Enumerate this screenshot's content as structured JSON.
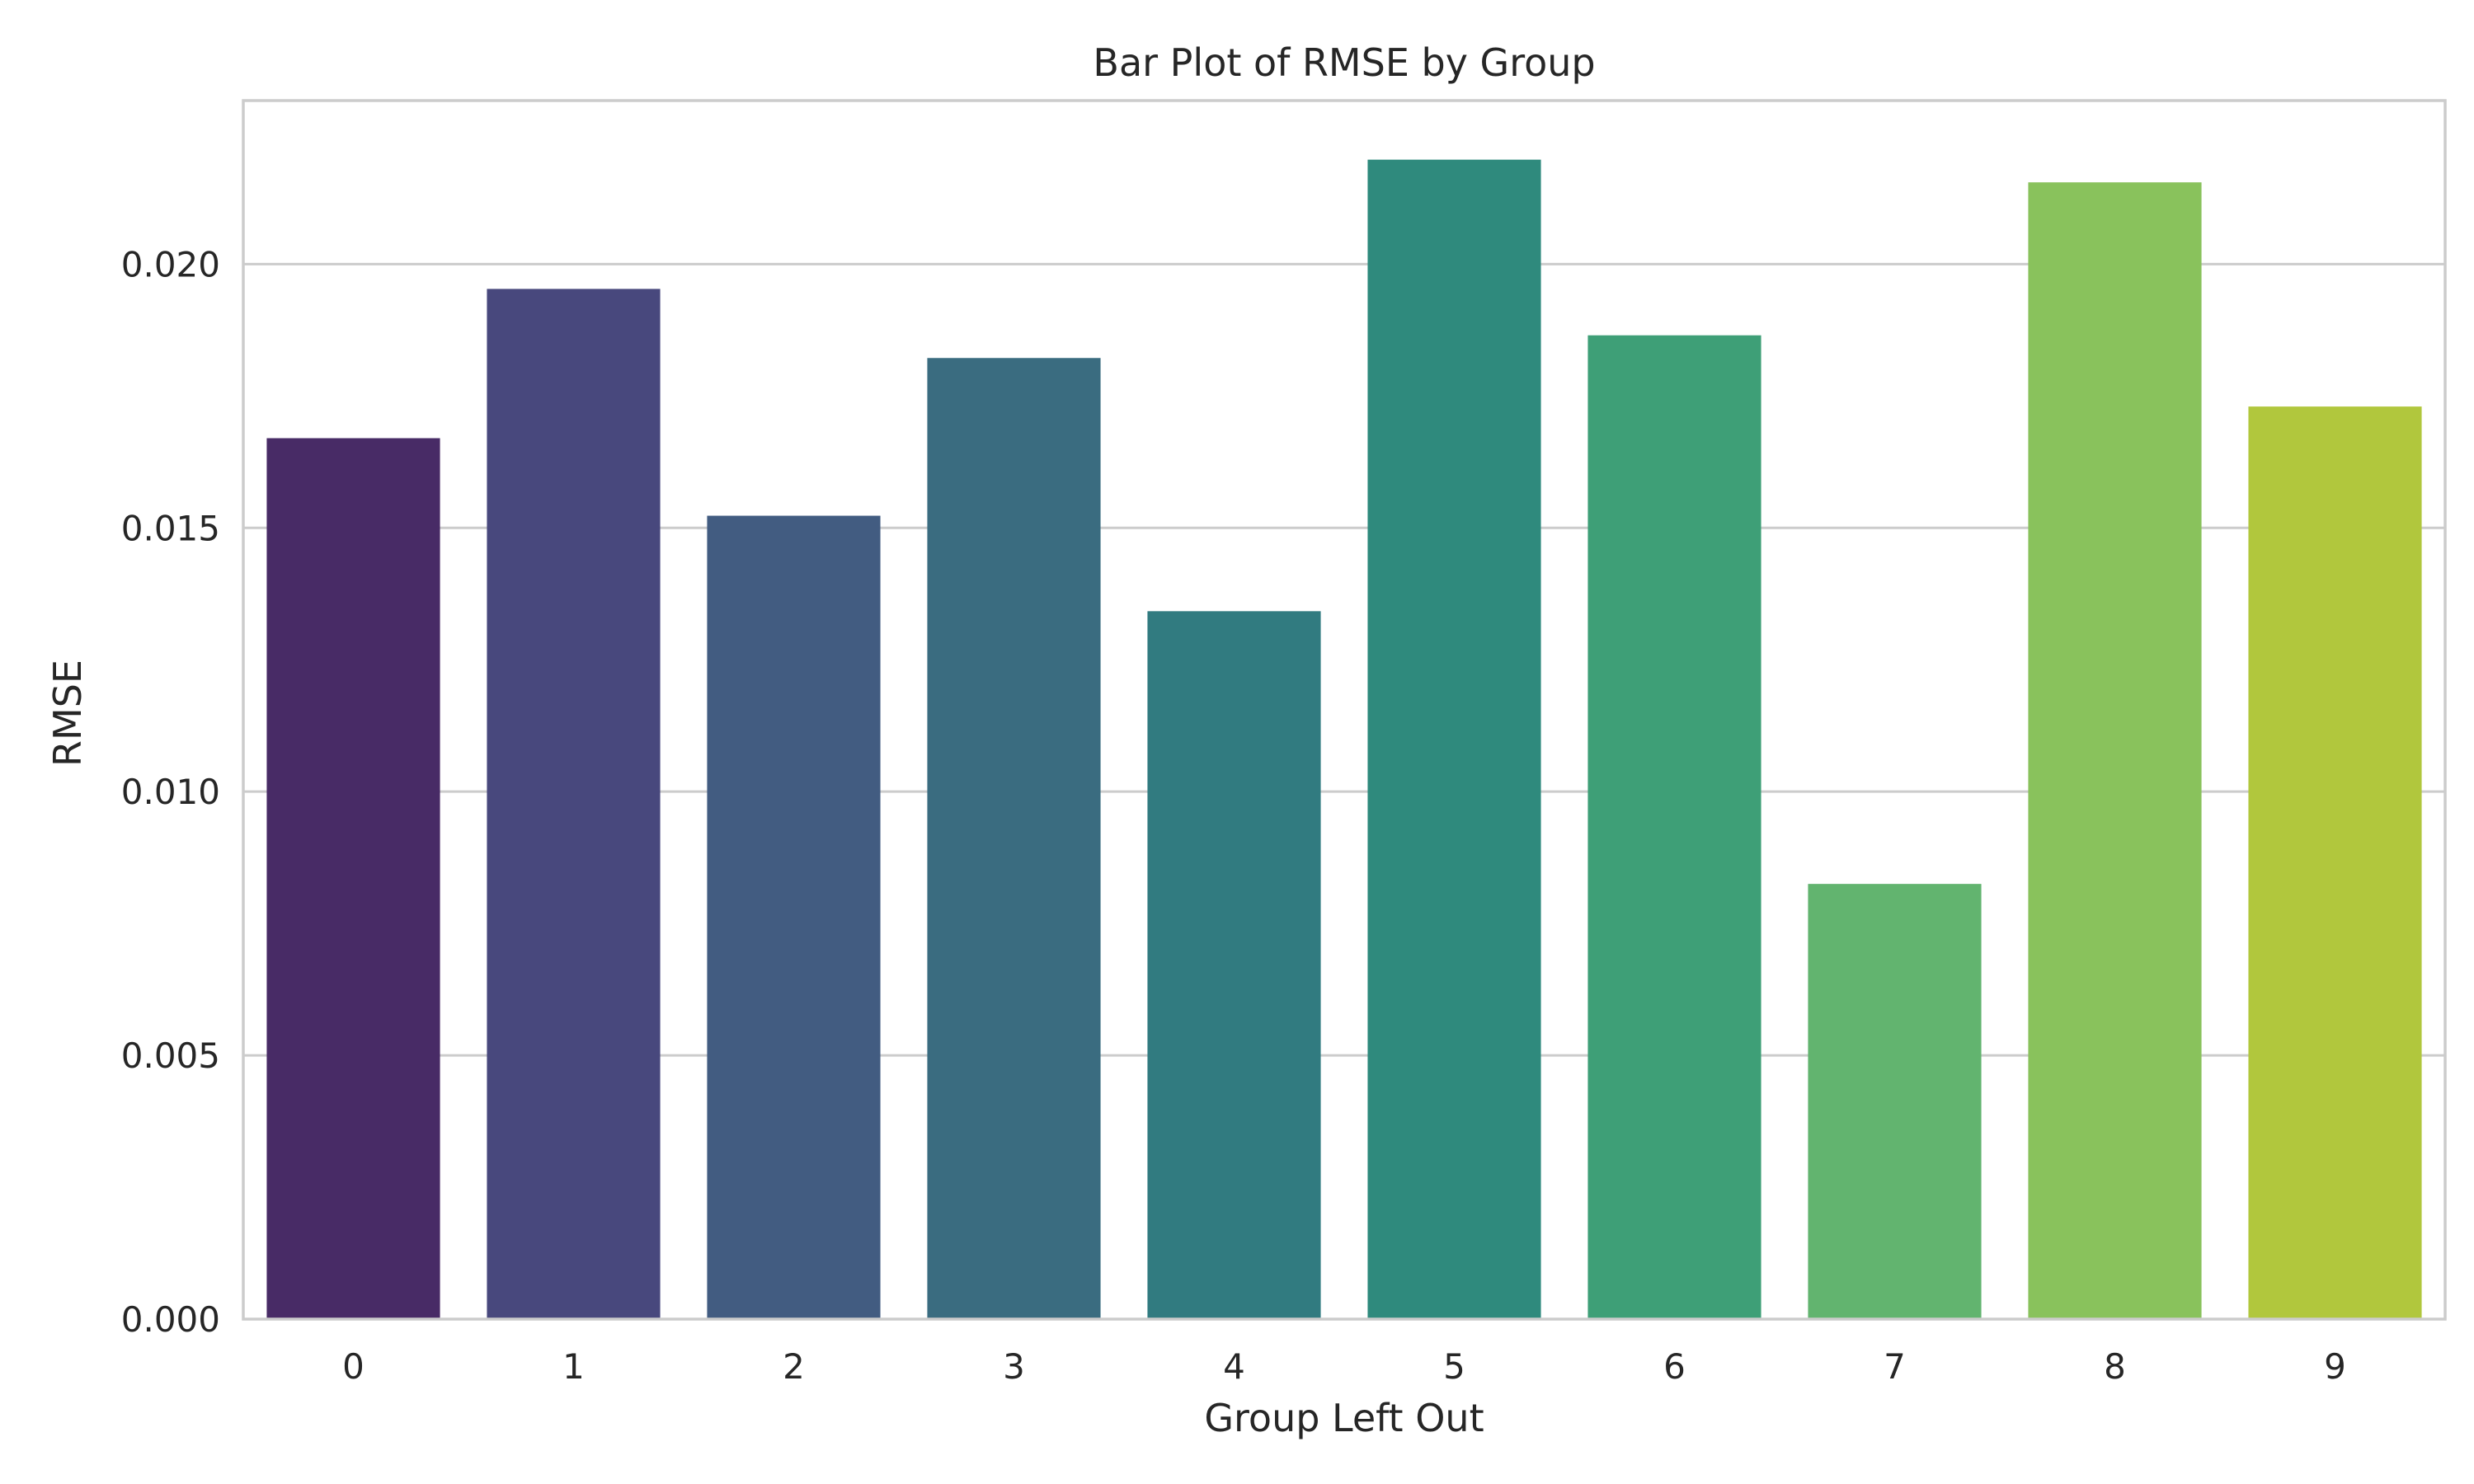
{
  "chart_data": {
    "type": "bar",
    "title": "Bar Plot of RMSE by Group",
    "xlabel": "Group Left Out",
    "ylabel": "RMSE",
    "categories": [
      "0",
      "1",
      "2",
      "3",
      "4",
      "5",
      "6",
      "7",
      "8",
      "9"
    ],
    "values": [
      0.0167,
      0.01953,
      0.01523,
      0.01822,
      0.01342,
      0.02198,
      0.01865,
      0.00825,
      0.02155,
      0.0173
    ],
    "ylim": [
      0,
      0.0231
    ],
    "yticks": [
      0.0,
      0.005,
      0.01,
      0.015,
      0.02
    ],
    "ytick_labels": [
      "0.000",
      "0.005",
      "0.010",
      "0.015",
      "0.020"
    ],
    "grid": "horizontal",
    "colors": [
      "#482B66",
      "#48487D",
      "#425C81",
      "#3A6C80",
      "#317B80",
      "#2F8A7D",
      "#3E9F77",
      "#62B46F",
      "#89C25C",
      "#B1C73D"
    ]
  }
}
